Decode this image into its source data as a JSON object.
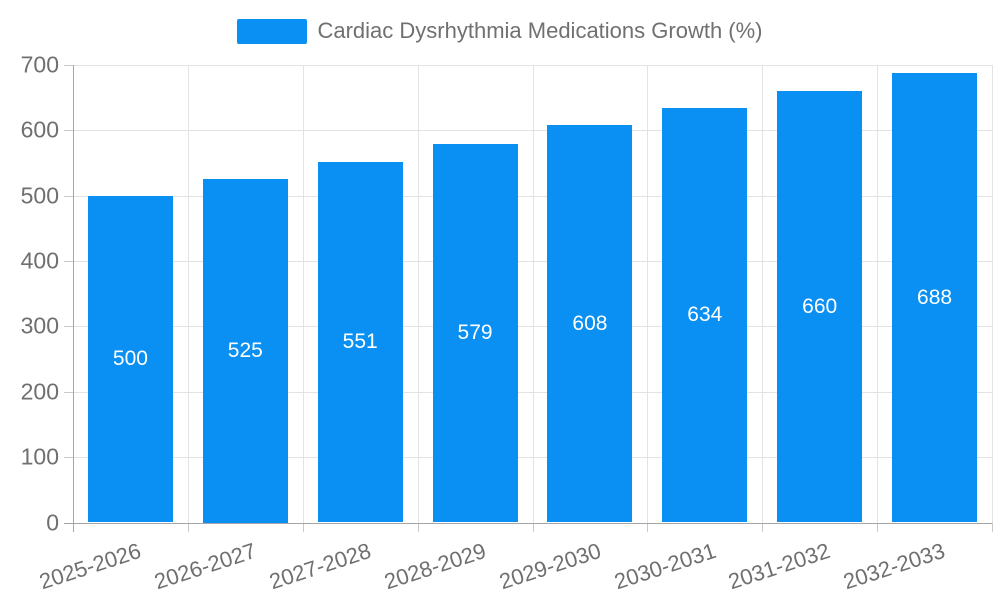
{
  "legend": {
    "label": "Cardiac Dysrhythmia Medications Growth (%)"
  },
  "colors": {
    "bar": "#0a90f2",
    "value_label": "#ffffff",
    "axis_text": "#6f6f6f",
    "legend_text": "#707070",
    "gridline": "#e3e3e3",
    "axis_line": "#a6a6a6"
  },
  "chart_data": {
    "type": "bar",
    "title": "Cardiac Dysrhythmia Medications Growth (%)",
    "categories": [
      "2025-2026",
      "2026-2027",
      "2027-2028",
      "2028-2029",
      "2029-2030",
      "2030-2031",
      "2031-2032",
      "2032-2033"
    ],
    "values": [
      500,
      525,
      551,
      579,
      608,
      634,
      660,
      688
    ],
    "xlabel": "",
    "ylabel": "",
    "ylim": [
      0,
      700
    ],
    "yticks": [
      0,
      100,
      200,
      300,
      400,
      500,
      600,
      700
    ],
    "grid": true,
    "legend_position": "top-center",
    "bar_color": "#0a90f2",
    "value_label_color": "#ffffff",
    "value_label_position": "inside-center",
    "x_label_rotation_deg": -18
  }
}
